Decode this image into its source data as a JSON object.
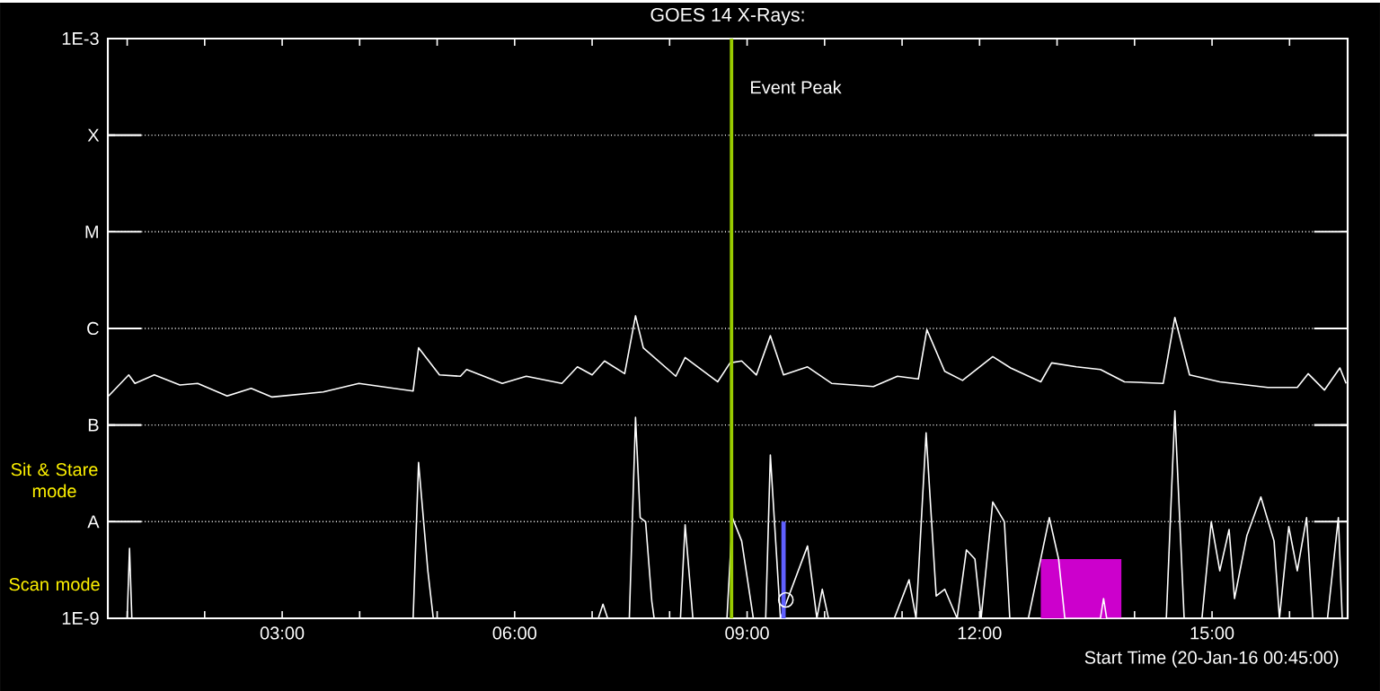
{
  "chart_data": {
    "type": "line",
    "title": "GOES 14 X-Rays:",
    "xlabel": "Start Time (20-Jan-16 00:45:00)",
    "annotations": [
      "Sit & Stare mode",
      "Scan mode"
    ],
    "log": "y",
    "grid": "y",
    "xlim": [
      0.75,
      16.75
    ],
    "xticks": [
      {
        "value": 1,
        "label": null
      },
      {
        "value": 2,
        "label": null
      },
      {
        "value": 3,
        "label": "03:00"
      },
      {
        "value": 4,
        "label": null
      },
      {
        "value": 5,
        "label": null
      },
      {
        "value": 6,
        "label": "06:00"
      },
      {
        "value": 7,
        "label": null
      },
      {
        "value": 8,
        "label": null
      },
      {
        "value": 9,
        "label": "09:00"
      },
      {
        "value": 10,
        "label": null
      },
      {
        "value": 11,
        "label": null
      },
      {
        "value": 12,
        "label": "12:00"
      },
      {
        "value": 13,
        "label": null
      },
      {
        "value": 14,
        "label": null
      },
      {
        "value": 15,
        "label": "15:00"
      },
      {
        "value": 16,
        "label": null
      }
    ],
    "ylim": [
      1e-09,
      0.001
    ],
    "yticks": [
      {
        "value": 1e-09,
        "label": "1E-9"
      },
      {
        "value": 1e-08,
        "label": "A"
      },
      {
        "value": 1e-07,
        "label": "B"
      },
      {
        "value": 1e-06,
        "label": "C"
      },
      {
        "value": 1e-05,
        "label": "M"
      },
      {
        "value": 0.0001,
        "label": "X"
      },
      {
        "value": 0.001,
        "label": "1E-3"
      }
    ],
    "ref_lines": [
      {
        "axis": "x",
        "value": 8.8,
        "label": "Event Peak",
        "color": "#99cc00"
      }
    ],
    "series": [
      {
        "type": "area",
        "color": "#cc00cc",
        "x": [
          12.79,
          13.83
        ],
        "values": [
          4.1e-09,
          4.1e-09
        ]
      },
      {
        "color": "#ffffff",
        "x": [
          0.76,
          1.02,
          1.1,
          1.35,
          1.68,
          1.91,
          2.29,
          2.6,
          2.87,
          3.53,
          3.99,
          4.69,
          4.76,
          5.03,
          5.3,
          5.38,
          5.84,
          6.15,
          6.61,
          6.81,
          7.0,
          7.16,
          7.42,
          7.56,
          7.66,
          8.08,
          8.2,
          8.62,
          8.78,
          8.93,
          9.12,
          9.3,
          9.47,
          9.78,
          10.09,
          10.63,
          10.94,
          11.21,
          11.32,
          11.55,
          11.78,
          12.17,
          12.4,
          12.79,
          12.93,
          13.25,
          13.56,
          13.87,
          14.37,
          14.52,
          14.71,
          15.1,
          15.72,
          16.1,
          16.24,
          16.45,
          16.65,
          16.73
        ],
        "values": [
          2e-07,
          3.3e-07,
          2.7e-07,
          3.3e-07,
          2.6e-07,
          2.7e-07,
          2e-07,
          2.4e-07,
          1.95e-07,
          2.2e-07,
          2.7e-07,
          2.25e-07,
          6.3e-07,
          3.3e-07,
          3.2e-07,
          3.75e-07,
          2.7e-07,
          3.2e-07,
          2.7e-07,
          4e-07,
          3.3e-07,
          4.6e-07,
          3.4e-07,
          1.35e-06,
          6.3e-07,
          3.2e-07,
          5e-07,
          2.8e-07,
          4.4e-07,
          4.6e-07,
          3.3e-07,
          8.4e-07,
          3.3e-07,
          4e-07,
          2.7e-07,
          2.5e-07,
          3.2e-07,
          3e-07,
          9.7e-07,
          3.6e-07,
          2.9e-07,
          5.1e-07,
          3.9e-07,
          2.8e-07,
          4.4e-07,
          4e-07,
          3.75e-07,
          2.8e-07,
          2.7e-07,
          1.3e-06,
          3.3e-07,
          2.8e-07,
          2.45e-07,
          2.45e-07,
          3.4e-07,
          2.3e-07,
          3.9e-07,
          2.7e-07
        ]
      },
      {
        "color": "#ffffff",
        "x": [
          0.76,
          1.0,
          1.03,
          1.06,
          4.69,
          4.76,
          4.88,
          4.95,
          7.08,
          7.14,
          7.2,
          7.48,
          7.56,
          7.62,
          7.69,
          7.77,
          7.8,
          8.14,
          8.2,
          8.3,
          8.74,
          8.81,
          8.93,
          9.08,
          9.24,
          9.3,
          9.43,
          9.78,
          9.9,
          9.97,
          10.05,
          10.9,
          11.09,
          11.18,
          11.31,
          11.44,
          11.55,
          11.71,
          11.83,
          11.94,
          12.02,
          12.17,
          12.32,
          12.39,
          12.63,
          12.9,
          13.02,
          13.1,
          13.56,
          13.6,
          13.64,
          14.41,
          14.52,
          14.64,
          14.87,
          14.99,
          15.1,
          15.22,
          15.29,
          15.45,
          15.63,
          15.8,
          15.87,
          15.99,
          16.1,
          16.22,
          16.3,
          16.49,
          16.63,
          16.68
        ],
        "values": [
          1e-09,
          1e-09,
          5.3e-09,
          1e-09,
          1e-09,
          4.1e-08,
          3.1e-09,
          1e-09,
          1e-09,
          1.4e-09,
          1e-09,
          1e-09,
          1.2e-07,
          1.1e-08,
          1e-08,
          1.5e-09,
          1e-09,
          1e-09,
          9.3e-09,
          1e-09,
          1e-09,
          1.1e-08,
          6.3e-09,
          1e-09,
          1e-09,
          4.9e-08,
          1e-09,
          5.6e-09,
          1e-09,
          2e-09,
          1e-09,
          1e-09,
          2.5e-09,
          1e-09,
          8.3e-08,
          1.7e-09,
          2e-09,
          1e-09,
          5.1e-09,
          4.1e-09,
          1e-09,
          1.6e-08,
          1e-08,
          1e-09,
          1e-09,
          1.1e-08,
          4.1e-09,
          1e-09,
          1e-09,
          1.6e-09,
          1e-09,
          1e-09,
          1.4e-07,
          1e-09,
          1e-09,
          1e-08,
          3.1e-09,
          8.3e-09,
          1.6e-09,
          7.2e-09,
          1.8e-08,
          6.3e-09,
          1e-09,
          8.9e-09,
          3.1e-09,
          1.1e-08,
          1e-09,
          1e-09,
          1.1e-08,
          1e-09
        ]
      },
      {
        "color": "#6060ff",
        "x": [
          9.47,
          9.47
        ],
        "values": [
          1e-09,
          1e-08
        ]
      },
      {
        "type": "scatter",
        "marker": "circle",
        "color": "#ffffff",
        "x": [
          9.5
        ],
        "values": [
          1.55e-09
        ]
      }
    ]
  }
}
